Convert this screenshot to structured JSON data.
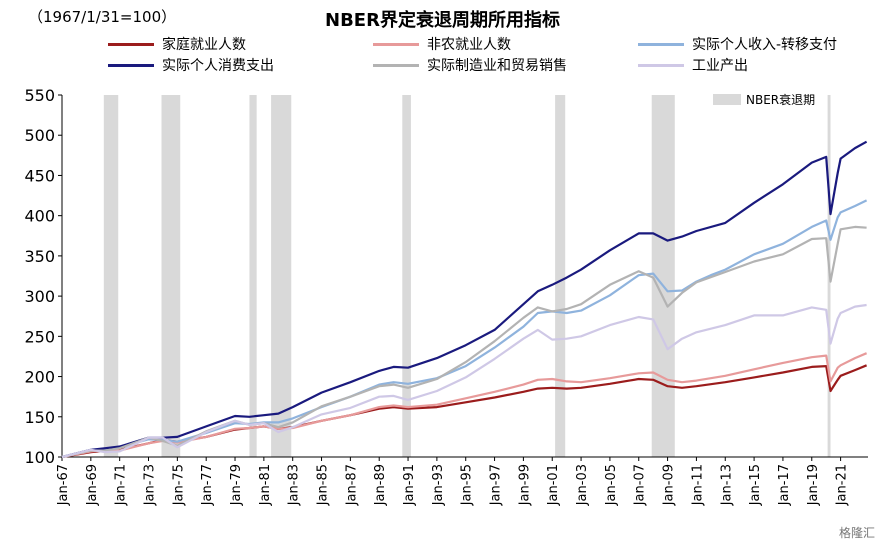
{
  "subtitle": "（1967/1/31=100）",
  "chart_data": {
    "type": "line",
    "title": "NBER界定衰退周期所用指标",
    "ylim": [
      100,
      550
    ],
    "yticks": [
      100,
      150,
      200,
      250,
      300,
      350,
      400,
      450,
      500,
      550
    ],
    "xlim": [
      1967,
      2022.9
    ],
    "xtick_labels": [
      "Jan-67",
      "Jan-69",
      "Jan-71",
      "Jan-73",
      "Jan-75",
      "Jan-77",
      "Jan-79",
      "Jan-81",
      "Jan-83",
      "Jan-85",
      "Jan-87",
      "Jan-89",
      "Jan-91",
      "Jan-93",
      "Jan-95",
      "Jan-97",
      "Jan-99",
      "Jan-01",
      "Jan-03",
      "Jan-05",
      "Jan-07",
      "Jan-09",
      "Jan-11",
      "Jan-13",
      "Jan-15",
      "Jan-17",
      "Jan-19",
      "Jan-21"
    ],
    "recession_label": "NBER衰退期",
    "recessions": [
      [
        1969.9,
        1970.9
      ],
      [
        1973.9,
        1975.2
      ],
      [
        1980.0,
        1980.5
      ],
      [
        1981.5,
        1982.9
      ],
      [
        1990.6,
        1991.2
      ],
      [
        2001.2,
        2001.9
      ],
      [
        2007.9,
        2009.5
      ],
      [
        2020.1,
        2020.3
      ]
    ],
    "legend_position": "top",
    "series": [
      {
        "name": "家庭就业人数",
        "color": "#9b1c1c",
        "points": [
          [
            1967,
            100
          ],
          [
            1969,
            106
          ],
          [
            1970,
            108
          ],
          [
            1971,
            109
          ],
          [
            1973,
            117
          ],
          [
            1974,
            121
          ],
          [
            1975,
            119
          ],
          [
            1977,
            125
          ],
          [
            1979,
            134
          ],
          [
            1980,
            136
          ],
          [
            1981,
            138
          ],
          [
            1982,
            135
          ],
          [
            1983,
            137
          ],
          [
            1985,
            145
          ],
          [
            1987,
            152
          ],
          [
            1989,
            160
          ],
          [
            1990,
            162
          ],
          [
            1991,
            160
          ],
          [
            1993,
            162
          ],
          [
            1995,
            168
          ],
          [
            1997,
            174
          ],
          [
            1999,
            181
          ],
          [
            2000,
            185
          ],
          [
            2001,
            186
          ],
          [
            2002,
            185
          ],
          [
            2003,
            186
          ],
          [
            2005,
            191
          ],
          [
            2007,
            197
          ],
          [
            2008,
            196
          ],
          [
            2009,
            188
          ],
          [
            2010,
            186
          ],
          [
            2011,
            188
          ],
          [
            2013,
            193
          ],
          [
            2015,
            199
          ],
          [
            2017,
            205
          ],
          [
            2019,
            212
          ],
          [
            2020.0,
            213
          ],
          [
            2020.3,
            182
          ],
          [
            2020.8,
            196
          ],
          [
            2021,
            201
          ],
          [
            2022,
            208
          ],
          [
            2022.8,
            214
          ]
        ]
      },
      {
        "name": "非农就业人数",
        "color": "#e79a9a",
        "points": [
          [
            1967,
            100
          ],
          [
            1969,
            107
          ],
          [
            1970,
            109
          ],
          [
            1971,
            108
          ],
          [
            1973,
            117
          ],
          [
            1974,
            120
          ],
          [
            1975,
            118
          ],
          [
            1977,
            125
          ],
          [
            1979,
            135
          ],
          [
            1980,
            136
          ],
          [
            1981,
            138
          ],
          [
            1982,
            135
          ],
          [
            1983,
            136
          ],
          [
            1985,
            145
          ],
          [
            1987,
            152
          ],
          [
            1989,
            162
          ],
          [
            1990,
            164
          ],
          [
            1991,
            162
          ],
          [
            1993,
            165
          ],
          [
            1995,
            173
          ],
          [
            1997,
            181
          ],
          [
            1999,
            190
          ],
          [
            2000,
            196
          ],
          [
            2001,
            197
          ],
          [
            2002,
            194
          ],
          [
            2003,
            193
          ],
          [
            2005,
            198
          ],
          [
            2007,
            204
          ],
          [
            2008,
            205
          ],
          [
            2009,
            196
          ],
          [
            2010,
            193
          ],
          [
            2011,
            195
          ],
          [
            2013,
            201
          ],
          [
            2015,
            209
          ],
          [
            2017,
            217
          ],
          [
            2019,
            224
          ],
          [
            2020.0,
            226
          ],
          [
            2020.3,
            194
          ],
          [
            2020.8,
            211
          ],
          [
            2021,
            214
          ],
          [
            2022,
            223
          ],
          [
            2022.8,
            229
          ]
        ]
      },
      {
        "name": "实际个人收入-转移支付",
        "color": "#8fb3dd",
        "points": [
          [
            1967,
            100
          ],
          [
            1969,
            109
          ],
          [
            1970,
            110
          ],
          [
            1971,
            112
          ],
          [
            1973,
            122
          ],
          [
            1974,
            121
          ],
          [
            1975,
            119
          ],
          [
            1977,
            130
          ],
          [
            1979,
            142
          ],
          [
            1980,
            141
          ],
          [
            1981,
            143
          ],
          [
            1982,
            143
          ],
          [
            1983,
            148
          ],
          [
            1985,
            162
          ],
          [
            1987,
            175
          ],
          [
            1989,
            190
          ],
          [
            1990,
            193
          ],
          [
            1991,
            191
          ],
          [
            1993,
            198
          ],
          [
            1995,
            213
          ],
          [
            1997,
            236
          ],
          [
            1999,
            262
          ],
          [
            2000,
            279
          ],
          [
            2001,
            281
          ],
          [
            2002,
            279
          ],
          [
            2003,
            282
          ],
          [
            2005,
            301
          ],
          [
            2007,
            326
          ],
          [
            2008,
            328
          ],
          [
            2009,
            306
          ],
          [
            2010,
            307
          ],
          [
            2011,
            318
          ],
          [
            2012,
            326
          ],
          [
            2013,
            333
          ],
          [
            2015,
            352
          ],
          [
            2017,
            365
          ],
          [
            2019,
            386
          ],
          [
            2020.0,
            394
          ],
          [
            2020.3,
            370
          ],
          [
            2020.8,
            398
          ],
          [
            2021,
            404
          ],
          [
            2022,
            412
          ],
          [
            2022.8,
            419
          ]
        ]
      },
      {
        "name": "实际个人消费支出",
        "color": "#1a1a7e",
        "points": [
          [
            1967,
            100
          ],
          [
            1969,
            109
          ],
          [
            1970,
            111
          ],
          [
            1971,
            113
          ],
          [
            1973,
            124
          ],
          [
            1974,
            124
          ],
          [
            1975,
            125
          ],
          [
            1977,
            138
          ],
          [
            1979,
            151
          ],
          [
            1980,
            150
          ],
          [
            1981,
            152
          ],
          [
            1982,
            154
          ],
          [
            1983,
            162
          ],
          [
            1985,
            180
          ],
          [
            1987,
            193
          ],
          [
            1989,
            207
          ],
          [
            1990,
            212
          ],
          [
            1991,
            211
          ],
          [
            1993,
            223
          ],
          [
            1995,
            239
          ],
          [
            1997,
            258
          ],
          [
            1999,
            290
          ],
          [
            2000,
            306
          ],
          [
            2001,
            314
          ],
          [
            2002,
            323
          ],
          [
            2003,
            333
          ],
          [
            2005,
            357
          ],
          [
            2007,
            378
          ],
          [
            2008,
            378
          ],
          [
            2009,
            369
          ],
          [
            2010,
            374
          ],
          [
            2011,
            381
          ],
          [
            2013,
            391
          ],
          [
            2015,
            416
          ],
          [
            2017,
            439
          ],
          [
            2019,
            466
          ],
          [
            2020.0,
            473
          ],
          [
            2020.3,
            402
          ],
          [
            2020.8,
            453
          ],
          [
            2021,
            471
          ],
          [
            2022,
            484
          ],
          [
            2022.8,
            492
          ]
        ]
      },
      {
        "name": "实际制造业和贸易销售",
        "color": "#b3b3b3",
        "points": [
          [
            1967,
            100
          ],
          [
            1969,
            108
          ],
          [
            1970,
            108
          ],
          [
            1971,
            111
          ],
          [
            1973,
            124
          ],
          [
            1974,
            120
          ],
          [
            1975,
            114
          ],
          [
            1977,
            132
          ],
          [
            1979,
            145
          ],
          [
            1980,
            140
          ],
          [
            1981,
            142
          ],
          [
            1982,
            137
          ],
          [
            1983,
            143
          ],
          [
            1985,
            163
          ],
          [
            1987,
            175
          ],
          [
            1989,
            188
          ],
          [
            1990,
            190
          ],
          [
            1991,
            186
          ],
          [
            1993,
            197
          ],
          [
            1995,
            218
          ],
          [
            1997,
            244
          ],
          [
            1999,
            273
          ],
          [
            2000,
            286
          ],
          [
            2001,
            281
          ],
          [
            2002,
            284
          ],
          [
            2003,
            290
          ],
          [
            2005,
            314
          ],
          [
            2007,
            331
          ],
          [
            2008,
            323
          ],
          [
            2009,
            287
          ],
          [
            2010,
            304
          ],
          [
            2011,
            317
          ],
          [
            2013,
            330
          ],
          [
            2015,
            343
          ],
          [
            2017,
            352
          ],
          [
            2019,
            371
          ],
          [
            2020.0,
            372
          ],
          [
            2020.3,
            318
          ],
          [
            2020.8,
            365
          ],
          [
            2021,
            383
          ],
          [
            2022,
            386
          ],
          [
            2022.8,
            385
          ]
        ]
      },
      {
        "name": "工业产出",
        "color": "#cfc8e6",
        "points": [
          [
            1967,
            100
          ],
          [
            1969,
            109
          ],
          [
            1970,
            106
          ],
          [
            1971,
            107
          ],
          [
            1973,
            124
          ],
          [
            1974,
            124
          ],
          [
            1975,
            112
          ],
          [
            1977,
            131
          ],
          [
            1979,
            145
          ],
          [
            1980,
            140
          ],
          [
            1981,
            142
          ],
          [
            1982,
            131
          ],
          [
            1983,
            137
          ],
          [
            1985,
            153
          ],
          [
            1987,
            161
          ],
          [
            1989,
            175
          ],
          [
            1990,
            176
          ],
          [
            1991,
            171
          ],
          [
            1993,
            182
          ],
          [
            1995,
            199
          ],
          [
            1997,
            222
          ],
          [
            1999,
            247
          ],
          [
            2000,
            258
          ],
          [
            2001,
            246
          ],
          [
            2002,
            247
          ],
          [
            2003,
            250
          ],
          [
            2005,
            264
          ],
          [
            2007,
            274
          ],
          [
            2008,
            271
          ],
          [
            2009,
            234
          ],
          [
            2010,
            247
          ],
          [
            2011,
            255
          ],
          [
            2013,
            264
          ],
          [
            2015,
            276
          ],
          [
            2017,
            276
          ],
          [
            2019,
            286
          ],
          [
            2020.0,
            283
          ],
          [
            2020.3,
            241
          ],
          [
            2020.8,
            272
          ],
          [
            2021,
            279
          ],
          [
            2022,
            287
          ],
          [
            2022.8,
            289
          ]
        ]
      }
    ]
  },
  "watermark": "格隆汇"
}
